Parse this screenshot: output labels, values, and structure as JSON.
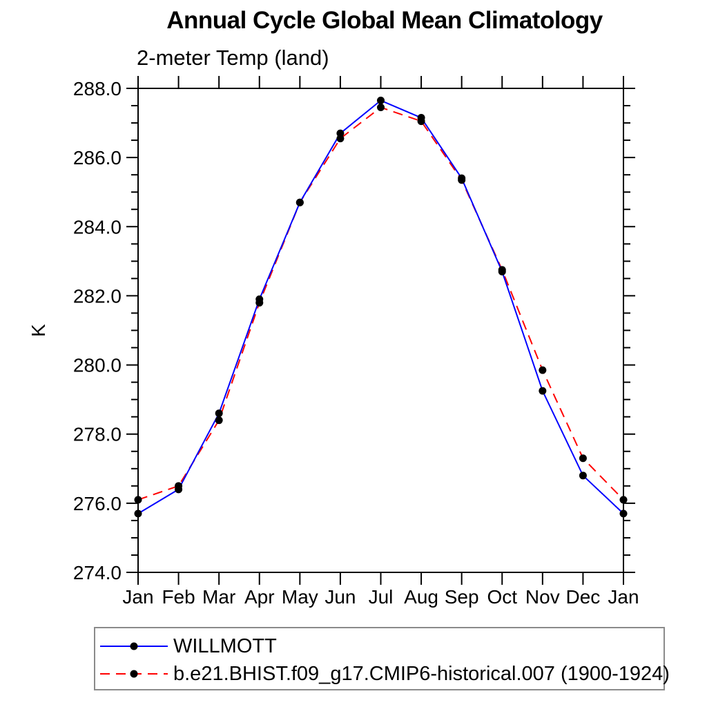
{
  "page": {
    "background": "#ffffff"
  },
  "chart_data": {
    "type": "line",
    "title": "Annual Cycle Global Mean Climatology",
    "subtitle": "2-meter Temp (land)",
    "xlabel": "",
    "ylabel": "K",
    "categories": [
      "Jan",
      "Feb",
      "Mar",
      "Apr",
      "May",
      "Jun",
      "Jul",
      "Aug",
      "Sep",
      "Oct",
      "Nov",
      "Dec",
      "Jan"
    ],
    "series": [
      {
        "name": "WILLMOTT",
        "color": "#0000ff",
        "line_style": "solid",
        "marker": "filled-circle",
        "marker_color": "#000000",
        "values": [
          275.7,
          276.4,
          278.6,
          281.9,
          284.7,
          286.7,
          287.65,
          287.15,
          285.4,
          282.7,
          279.25,
          276.8,
          275.7
        ]
      },
      {
        "name": "b.e21.BHIST.f09_g17.CMIP6-historical.007 (1900-1924)",
        "color": "#ff0000",
        "line_style": "dashed",
        "marker": "filled-circle",
        "marker_color": "#000000",
        "values": [
          276.1,
          276.5,
          278.4,
          281.8,
          284.7,
          286.55,
          287.45,
          287.05,
          285.35,
          282.75,
          279.85,
          277.3,
          276.1
        ]
      }
    ],
    "ylim": [
      274.0,
      288.0
    ],
    "ytick_major_step": 2.0,
    "ytick_minor_step": 0.5,
    "ytick_labels": [
      "274.0",
      "276.0",
      "278.0",
      "280.0",
      "282.0",
      "284.0",
      "286.0",
      "288.0"
    ],
    "grid": false,
    "axis_color": "#000000",
    "legend_position": "below-left"
  }
}
